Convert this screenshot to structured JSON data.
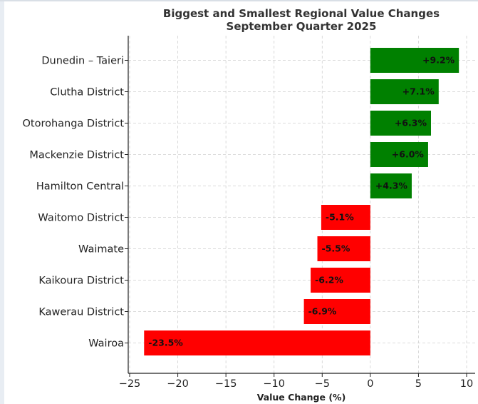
{
  "chart_data": {
    "type": "bar",
    "orientation": "horizontal",
    "title": "Biggest and Smallest Regional Value Changes",
    "subtitle": "September Quarter 2025",
    "xlabel": "Value Change (%)",
    "ylabel": "",
    "xlim": [
      -25,
      10
    ],
    "xticks": [
      -25,
      -20,
      -15,
      -10,
      -5,
      0,
      5,
      10
    ],
    "xtick_labels": [
      "−25",
      "−20",
      "−15",
      "−10",
      "−5",
      "0",
      "5",
      "10"
    ],
    "grid": true,
    "categories": [
      "Dunedin – Taieri",
      "Clutha District",
      "Otorohanga District",
      "Mackenzie District",
      "Hamilton Central",
      "Waitomo District",
      "Waimate",
      "Kaikoura District",
      "Kawerau District",
      "Wairoa"
    ],
    "values": [
      9.2,
      7.1,
      6.3,
      6.0,
      4.3,
      -5.1,
      -5.5,
      -6.2,
      -6.9,
      -23.5
    ],
    "data_labels": [
      "+9.2%",
      "+7.1%",
      "+6.3%",
      "+6.0%",
      "+4.3%",
      "-5.1%",
      "-5.5%",
      "-6.2%",
      "-6.9%",
      "-23.5%"
    ],
    "colors": {
      "positive": "#008000",
      "negative": "#ff0000"
    }
  }
}
